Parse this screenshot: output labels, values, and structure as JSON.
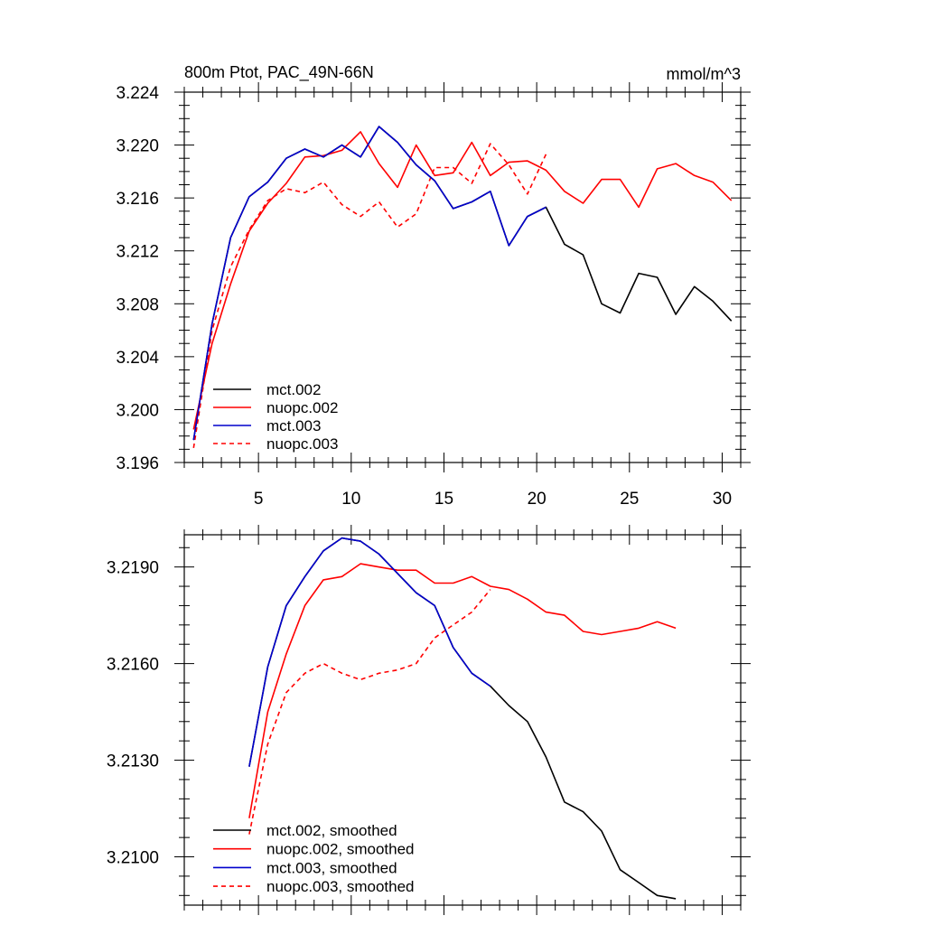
{
  "colors": {
    "mct_002": "#000000",
    "nuopc_002": "#ff0000",
    "mct_003": "#0000cc",
    "nuopc_003": "#ff0000"
  },
  "chart_data": [
    {
      "type": "line",
      "title": "800m Ptot, PAC_49N-66N",
      "units": "mmol/m^3",
      "xlim": [
        1,
        31
      ],
      "ylim": [
        3.196,
        3.224
      ],
      "x_ticks": [
        5,
        10,
        15,
        20,
        25,
        30
      ],
      "y_ticks": [
        "3.224",
        "3.220",
        "3.216",
        "3.212",
        "3.208",
        "3.204",
        "3.200",
        "3.196"
      ],
      "grid": false,
      "legend_position": "bottom-left",
      "series": [
        {
          "name": "mct.002",
          "style": "solid",
          "color_key": "mct_002",
          "x": [
            1.5,
            2.5,
            3.5,
            4.5,
            5.5,
            6.5,
            7.5,
            8.5,
            9.5,
            10.5,
            11.5,
            12.5,
            13.5,
            14.5,
            15.5,
            16.5,
            17.5,
            18.5,
            19.5,
            20.5,
            21.5,
            22.5,
            23.5,
            24.5,
            25.5,
            26.5,
            27.5,
            28.5,
            29.5,
            30.5
          ],
          "y": [
            3.1977,
            3.2065,
            3.213,
            3.2161,
            3.2172,
            3.219,
            3.2197,
            3.2191,
            3.22,
            3.2191,
            3.2214,
            3.2202,
            3.2185,
            3.2173,
            3.2152,
            3.2157,
            3.2165,
            3.2124,
            3.2146,
            3.2153,
            3.2125,
            3.2117,
            3.208,
            3.2073,
            3.2103,
            3.21,
            3.2072,
            3.2093,
            3.2082,
            3.2067
          ]
        },
        {
          "name": "nuopc.002",
          "style": "solid",
          "color_key": "nuopc_002",
          "x": [
            1.5,
            2.5,
            3.5,
            4.5,
            5.5,
            6.5,
            7.5,
            8.5,
            9.5,
            10.5,
            11.5,
            12.5,
            13.5,
            14.5,
            15.5,
            16.5,
            17.5,
            18.5,
            19.5,
            20.5,
            21.5,
            22.5,
            23.5,
            24.5,
            25.5,
            26.5,
            27.5,
            28.5,
            29.5,
            30.5
          ],
          "y": [
            3.1985,
            3.205,
            3.2095,
            3.2135,
            3.2156,
            3.2171,
            3.2191,
            3.2192,
            3.2196,
            3.221,
            3.2186,
            3.2168,
            3.22,
            3.2177,
            3.2179,
            3.2202,
            3.2177,
            3.2187,
            3.2188,
            3.2181,
            3.2165,
            3.2156,
            3.2174,
            3.2174,
            3.2153,
            3.2182,
            3.2186,
            3.2177,
            3.2172,
            3.2158
          ]
        },
        {
          "name": "mct.003",
          "style": "solid",
          "color_key": "mct_003",
          "x": [
            1.5,
            2.5,
            3.5,
            4.5,
            5.5,
            6.5,
            7.5,
            8.5,
            9.5,
            10.5,
            11.5,
            12.5,
            13.5,
            14.5,
            15.5,
            16.5,
            17.5,
            18.5,
            19.5,
            20.5
          ],
          "y": [
            3.1977,
            3.2065,
            3.213,
            3.2161,
            3.2172,
            3.219,
            3.2197,
            3.2191,
            3.22,
            3.2191,
            3.2214,
            3.2202,
            3.2185,
            3.2173,
            3.2152,
            3.2157,
            3.2165,
            3.2124,
            3.2146,
            3.2153
          ]
        },
        {
          "name": "nuopc.003",
          "style": "dashed",
          "color_key": "nuopc_003",
          "x": [
            1.5,
            2.5,
            3.5,
            4.5,
            5.5,
            6.5,
            7.5,
            8.5,
            9.5,
            10.5,
            11.5,
            12.5,
            13.5,
            14.5,
            15.5,
            16.5,
            17.5,
            18.5,
            19.5,
            20.5
          ],
          "y": [
            3.1971,
            3.206,
            3.2108,
            3.2136,
            3.2158,
            3.2167,
            3.2164,
            3.2172,
            3.2155,
            3.2146,
            3.2157,
            3.2138,
            3.2148,
            3.2183,
            3.2183,
            3.2171,
            3.2201,
            3.2185,
            3.2163,
            3.2193
          ]
        }
      ]
    },
    {
      "type": "line",
      "xlim": [
        1,
        31
      ],
      "ylim": [
        3.2085,
        3.22
      ],
      "x_ticks": [
        5,
        10,
        15,
        20,
        25,
        30
      ],
      "y_ticks": [
        "3.2190",
        "3.2160",
        "3.2130",
        "3.2100"
      ],
      "grid": false,
      "legend_position": "bottom-left",
      "series": [
        {
          "name": "mct.002, smoothed",
          "style": "solid",
          "color_key": "mct_002",
          "x": [
            4.5,
            5.5,
            6.5,
            7.5,
            8.5,
            9.5,
            10.5,
            11.5,
            12.5,
            13.5,
            14.5,
            15.5,
            16.5,
            17.5,
            18.5,
            19.5,
            20.5,
            21.5,
            22.5,
            23.5,
            24.5,
            25.5,
            26.5,
            27.5
          ],
          "y": [
            3.2128,
            3.2159,
            3.2178,
            3.2187,
            3.2195,
            3.2199,
            3.2198,
            3.2194,
            3.2188,
            3.2182,
            3.2178,
            3.2165,
            3.2157,
            3.2153,
            3.2147,
            3.2142,
            3.2131,
            3.2117,
            3.2114,
            3.2108,
            3.2096,
            3.2092,
            3.2088,
            3.2087
          ]
        },
        {
          "name": "nuopc.002, smoothed",
          "style": "solid",
          "color_key": "nuopc_002",
          "x": [
            4.5,
            5.5,
            6.5,
            7.5,
            8.5,
            9.5,
            10.5,
            11.5,
            12.5,
            13.5,
            14.5,
            15.5,
            16.5,
            17.5,
            18.5,
            19.5,
            20.5,
            21.5,
            22.5,
            23.5,
            24.5,
            25.5,
            26.5,
            27.5
          ],
          "y": [
            3.2112,
            3.2145,
            3.2163,
            3.2178,
            3.2186,
            3.2187,
            3.2191,
            3.219,
            3.2189,
            3.2189,
            3.2185,
            3.2185,
            3.2187,
            3.2184,
            3.2183,
            3.218,
            3.2176,
            3.2175,
            3.217,
            3.2169,
            3.217,
            3.2171,
            3.2173,
            3.2171
          ]
        },
        {
          "name": "mct.003, smoothed",
          "style": "solid",
          "color_key": "mct_003",
          "x": [
            4.5,
            5.5,
            6.5,
            7.5,
            8.5,
            9.5,
            10.5,
            11.5,
            12.5,
            13.5,
            14.5,
            15.5,
            16.5,
            17.5
          ],
          "y": [
            3.2128,
            3.2159,
            3.2178,
            3.2187,
            3.2195,
            3.2199,
            3.2198,
            3.2194,
            3.2188,
            3.2182,
            3.2178,
            3.2165,
            3.2157,
            3.2153
          ]
        },
        {
          "name": "nuopc.003, smoothed",
          "style": "dashed",
          "color_key": "nuopc_003",
          "x": [
            4.5,
            5.5,
            6.5,
            7.5,
            8.5,
            9.5,
            10.5,
            11.5,
            12.5,
            13.5,
            14.5,
            15.5,
            16.5,
            17.5
          ],
          "y": [
            3.2107,
            3.2135,
            3.2151,
            3.2157,
            3.216,
            3.2157,
            3.2155,
            3.2157,
            3.2158,
            3.216,
            3.2168,
            3.2172,
            3.2176,
            3.2183
          ]
        }
      ]
    }
  ]
}
